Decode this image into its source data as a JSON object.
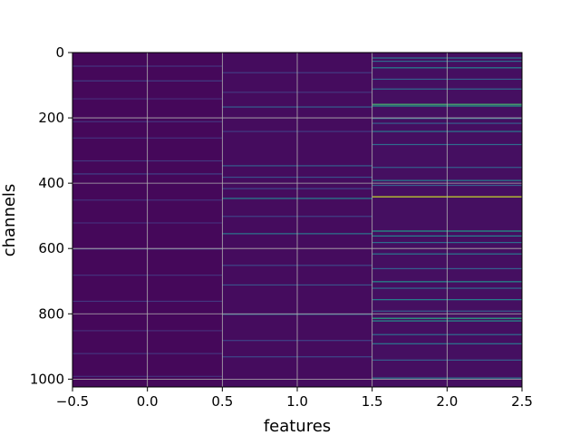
{
  "chart_data": {
    "type": "heatmap",
    "colormap": "viridis",
    "colormap_stops": [
      "#440154",
      "#482878",
      "#3e4989",
      "#31688e",
      "#26828e",
      "#1f9e89",
      "#35b779",
      "#6ece58",
      "#b5de2b",
      "#fde725"
    ],
    "xlabel": "features",
    "ylabel": "channels",
    "xlim": [
      -0.5,
      2.5
    ],
    "ylim": [
      1024,
      0
    ],
    "y_inverted": true,
    "grid": true,
    "x_ticks": [
      -0.5,
      0.0,
      0.5,
      1.0,
      1.5,
      2.0,
      2.5
    ],
    "x_tick_labels": [
      "−0.5",
      "0.0",
      "0.5",
      "1.0",
      "1.5",
      "2.0",
      "2.5"
    ],
    "y_ticks": [
      0,
      200,
      400,
      600,
      800,
      1000
    ],
    "y_tick_labels": [
      "0",
      "200",
      "400",
      "600",
      "800",
      "1000"
    ],
    "columns": [
      {
        "feature": 0,
        "background_level": 0.02,
        "bands": [
          {
            "channel": 40,
            "level": 0.15
          },
          {
            "channel": 85,
            "level": 0.18
          },
          {
            "channel": 140,
            "level": 0.12
          },
          {
            "channel": 210,
            "level": 0.15
          },
          {
            "channel": 260,
            "level": 0.14
          },
          {
            "channel": 330,
            "level": 0.16
          },
          {
            "channel": 370,
            "level": 0.2
          },
          {
            "channel": 450,
            "level": 0.14
          },
          {
            "channel": 520,
            "level": 0.13
          },
          {
            "channel": 600,
            "level": 0.15
          },
          {
            "channel": 680,
            "level": 0.14
          },
          {
            "channel": 760,
            "level": 0.16
          },
          {
            "channel": 850,
            "level": 0.13
          },
          {
            "channel": 920,
            "level": 0.15
          },
          {
            "channel": 990,
            "level": 0.14
          }
        ]
      },
      {
        "feature": 1,
        "background_level": 0.03,
        "bands": [
          {
            "channel": 60,
            "level": 0.18
          },
          {
            "channel": 120,
            "level": 0.16
          },
          {
            "channel": 165,
            "level": 0.3
          },
          {
            "channel": 240,
            "level": 0.18
          },
          {
            "channel": 345,
            "level": 0.3
          },
          {
            "channel": 380,
            "level": 0.25
          },
          {
            "channel": 415,
            "level": 0.22
          },
          {
            "channel": 445,
            "level": 0.45
          },
          {
            "channel": 500,
            "level": 0.2
          },
          {
            "channel": 553,
            "level": 0.4
          },
          {
            "channel": 650,
            "level": 0.22
          },
          {
            "channel": 710,
            "level": 0.25
          },
          {
            "channel": 800,
            "level": 0.3
          },
          {
            "channel": 880,
            "level": 0.2
          },
          {
            "channel": 930,
            "level": 0.22
          }
        ]
      },
      {
        "feature": 2,
        "background_level": 0.04,
        "bands": [
          {
            "channel": 15,
            "level": 0.4
          },
          {
            "channel": 25,
            "level": 0.35
          },
          {
            "channel": 45,
            "level": 0.45
          },
          {
            "channel": 80,
            "level": 0.3
          },
          {
            "channel": 110,
            "level": 0.35
          },
          {
            "channel": 157,
            "level": 0.7
          },
          {
            "channel": 162,
            "level": 0.55
          },
          {
            "channel": 200,
            "level": 0.35
          },
          {
            "channel": 215,
            "level": 0.3
          },
          {
            "channel": 240,
            "level": 0.4
          },
          {
            "channel": 280,
            "level": 0.35
          },
          {
            "channel": 350,
            "level": 0.3
          },
          {
            "channel": 390,
            "level": 0.45
          },
          {
            "channel": 405,
            "level": 0.3
          },
          {
            "channel": 440,
            "level": 0.92
          },
          {
            "channel": 545,
            "level": 0.55
          },
          {
            "channel": 560,
            "level": 0.45
          },
          {
            "channel": 580,
            "level": 0.35
          },
          {
            "channel": 615,
            "level": 0.4
          },
          {
            "channel": 660,
            "level": 0.3
          },
          {
            "channel": 700,
            "level": 0.5
          },
          {
            "channel": 720,
            "level": 0.35
          },
          {
            "channel": 755,
            "level": 0.45
          },
          {
            "channel": 790,
            "level": 0.3
          },
          {
            "channel": 812,
            "level": 0.6
          },
          {
            "channel": 820,
            "level": 0.5
          },
          {
            "channel": 862,
            "level": 0.35
          },
          {
            "channel": 890,
            "level": 0.4
          },
          {
            "channel": 940,
            "level": 0.3
          },
          {
            "channel": 995,
            "level": 0.4
          }
        ]
      }
    ]
  }
}
